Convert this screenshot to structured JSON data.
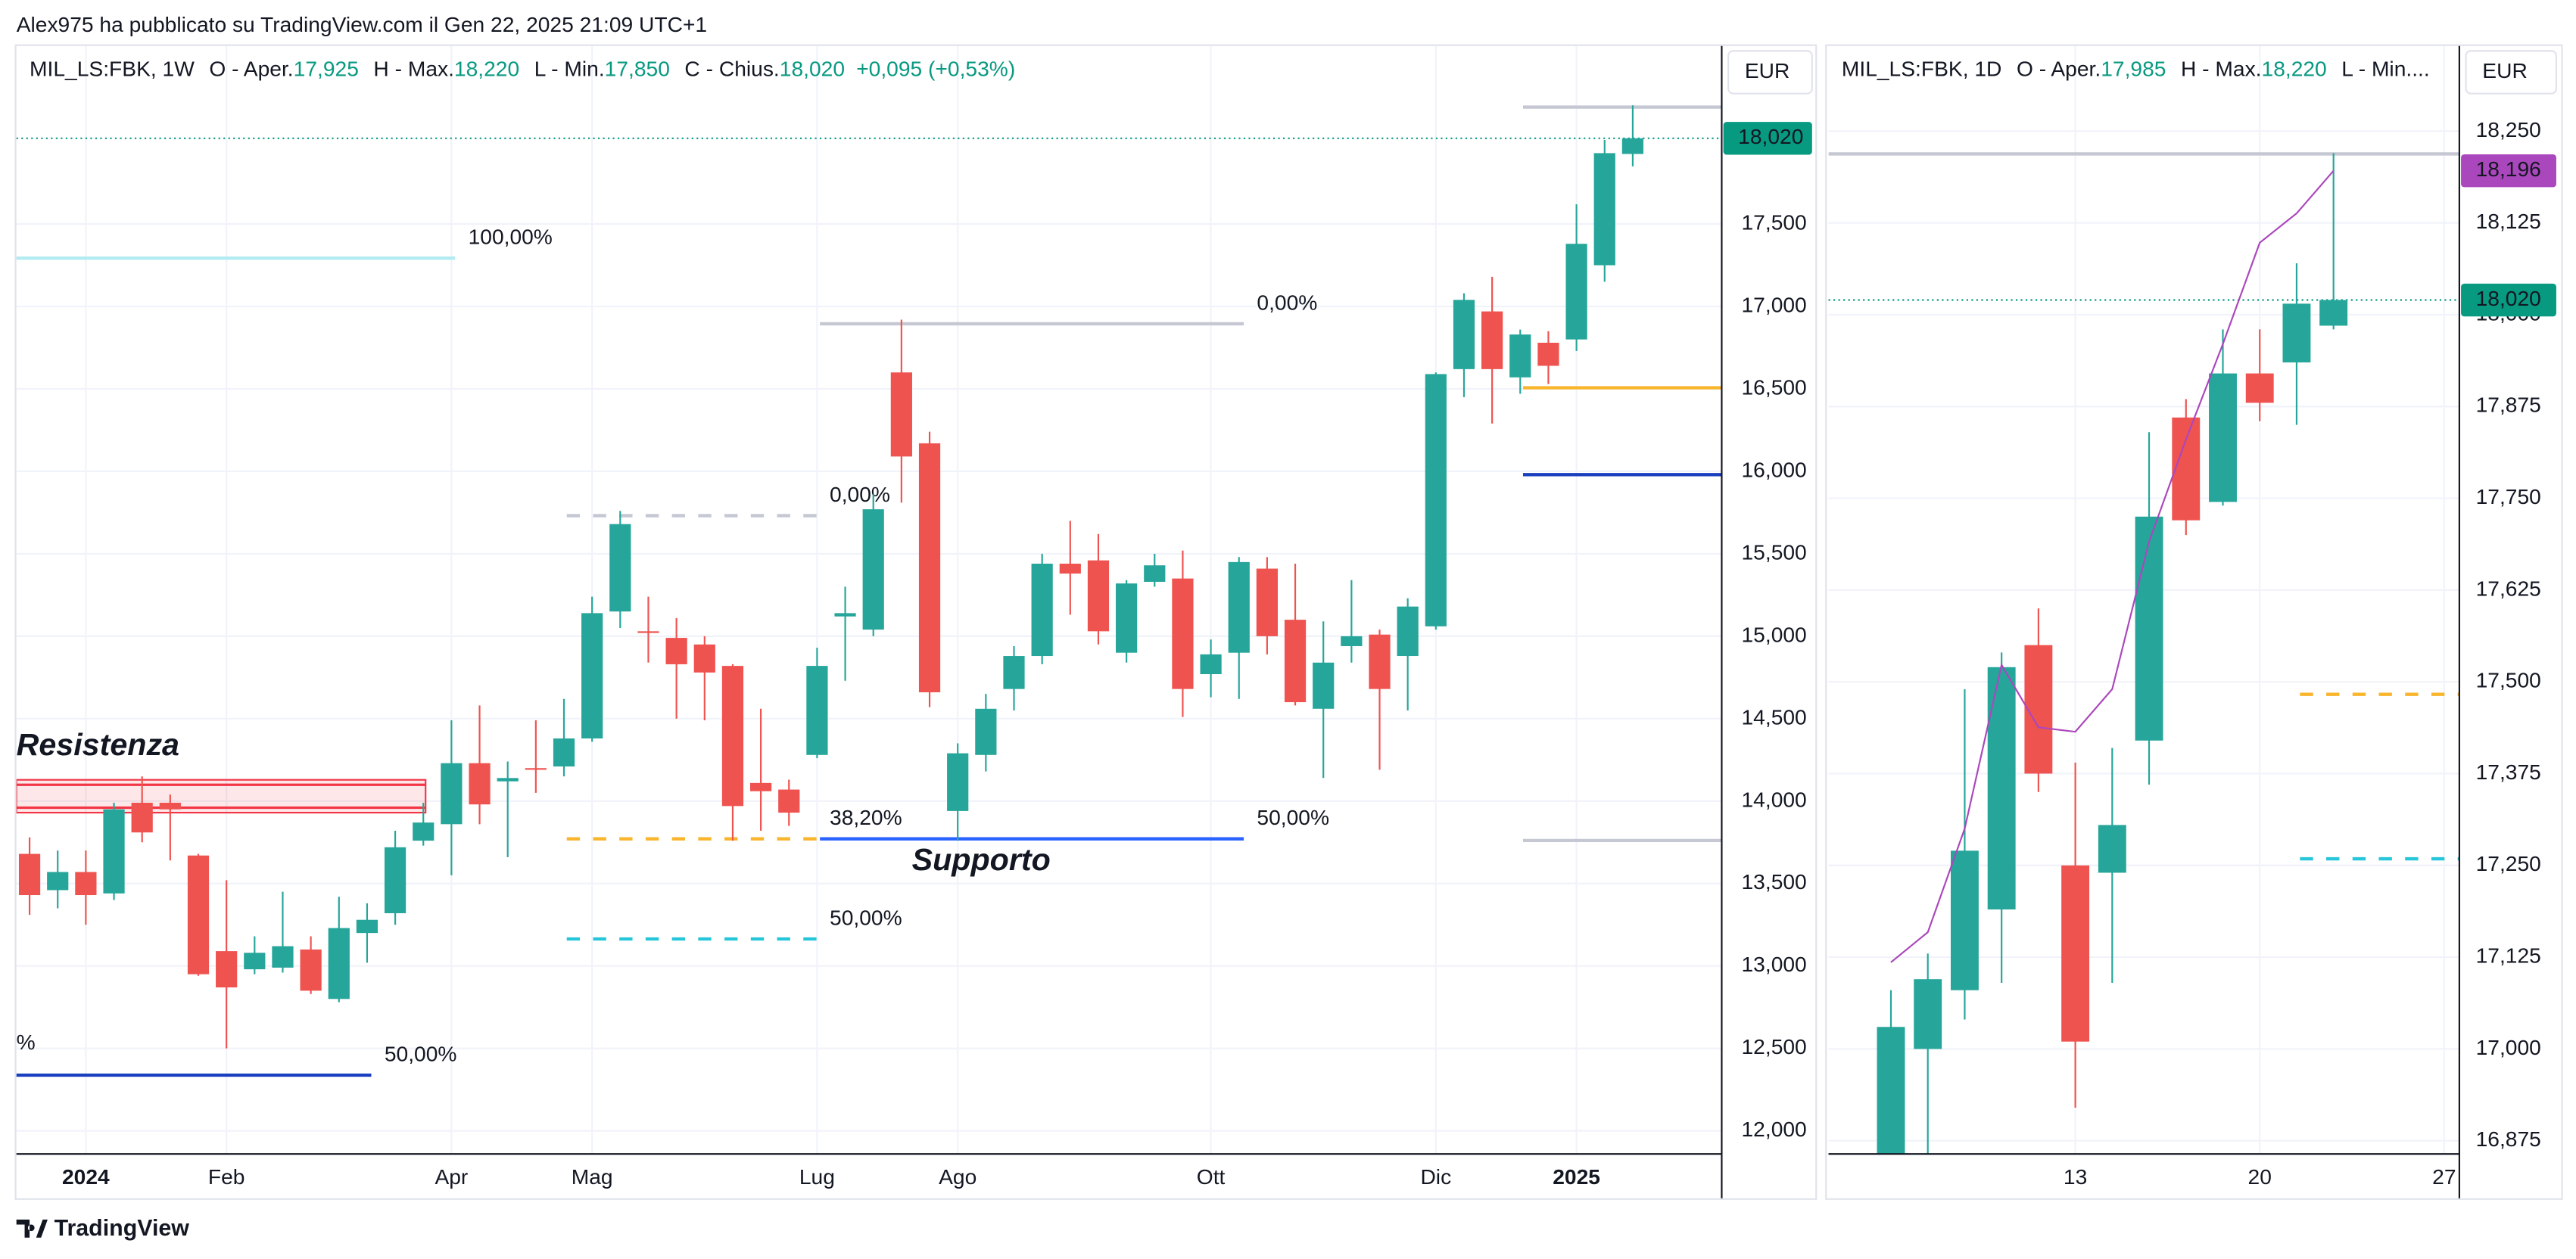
{
  "header": "Alex975 ha pubblicato su TradingView.com il Gen 22, 2025 21:09 UTC+1",
  "footer": "TradingView",
  "chart_data": [
    {
      "type": "candlestick",
      "currency": "EUR",
      "up_color": "#26a69a",
      "down_color": "#ef5350",
      "grid": true,
      "legend": {
        "symbol": "MIL_LS:FBK, 1W",
        "items": [
          {
            "label": "O - Aper.",
            "value": "17,925"
          },
          {
            "label": "H - Max.",
            "value": "18,220"
          },
          {
            "label": "L - Min.",
            "value": "17,850"
          },
          {
            "label": "C - Chius.",
            "value": "18,020"
          }
        ],
        "change": "+0,095 (+0,53%)"
      },
      "categories": [
        null,
        null,
        "2024",
        null,
        null,
        null,
        null,
        "Feb",
        null,
        null,
        null,
        null,
        null,
        null,
        null,
        "Apr",
        null,
        null,
        null,
        null,
        "Mag",
        null,
        null,
        null,
        null,
        null,
        null,
        null,
        "Lug",
        null,
        null,
        null,
        null,
        "Ago",
        null,
        null,
        null,
        null,
        null,
        null,
        null,
        null,
        "Ott",
        null,
        null,
        null,
        null,
        null,
        null,
        null,
        "Dic",
        null,
        null,
        null,
        null,
        "2025",
        null,
        null
      ],
      "open": [
        13680,
        13460,
        13570,
        13440,
        13990,
        13990,
        13670,
        13090,
        12980,
        12990,
        13100,
        12800,
        13200,
        13320,
        13760,
        13860,
        14230,
        14120,
        14200,
        14210,
        14380,
        15150,
        15030,
        14990,
        14950,
        14820,
        14110,
        14070,
        14280,
        15120,
        15040,
        16600,
        16170,
        13940,
        14280,
        14680,
        14880,
        15440,
        15460,
        14900,
        15330,
        15350,
        14770,
        14900,
        15410,
        15100,
        14560,
        14940,
        15010,
        14880,
        15060,
        16620,
        16970,
        16570,
        16780,
        16800,
        17250,
        17925
      ],
      "high": [
        13780,
        13700,
        13700,
        13990,
        14150,
        14040,
        13680,
        13520,
        13180,
        13450,
        13180,
        13420,
        13380,
        13820,
        13990,
        14490,
        14580,
        14240,
        14490,
        14620,
        15240,
        15760,
        15240,
        15110,
        15000,
        14830,
        14560,
        14130,
        14930,
        15300,
        15860,
        16920,
        16240,
        14350,
        14650,
        14940,
        15500,
        15700,
        15620,
        15340,
        15500,
        15520,
        14980,
        15480,
        15480,
        15440,
        15090,
        15340,
        15040,
        15230,
        16600,
        17080,
        17180,
        16860,
        16850,
        17620,
        18010,
        18220
      ],
      "low": [
        13310,
        13350,
        13250,
        13400,
        13750,
        13640,
        12940,
        12500,
        12950,
        12960,
        12830,
        12780,
        13020,
        13250,
        13730,
        13550,
        13860,
        13660,
        14050,
        14150,
        14360,
        15050,
        14840,
        14500,
        14490,
        13760,
        13820,
        13850,
        14260,
        14730,
        15000,
        15810,
        14570,
        13760,
        14180,
        14550,
        14830,
        15130,
        14950,
        14840,
        15300,
        14510,
        14630,
        14620,
        14890,
        14580,
        14140,
        14840,
        14190,
        14550,
        15040,
        16450,
        16290,
        16470,
        16530,
        16730,
        17150,
        17850
      ],
      "close": [
        13430,
        13570,
        13430,
        13950,
        13810,
        13950,
        12950,
        12870,
        13080,
        13120,
        12850,
        13230,
        13280,
        13720,
        13870,
        14230,
        13980,
        14140,
        14190,
        14380,
        15140,
        15680,
        15020,
        14830,
        14780,
        13970,
        14060,
        13930,
        14820,
        15140,
        15770,
        16090,
        14660,
        14290,
        14560,
        14880,
        15440,
        15380,
        15030,
        15320,
        15430,
        14680,
        14890,
        15450,
        15000,
        14600,
        14840,
        15000,
        14680,
        15180,
        16590,
        17040,
        16620,
        16830,
        16640,
        17380,
        17930,
        18020
      ],
      "ylim": [
        11860,
        18580
      ],
      "yticks": [
        {
          "value": 12000,
          "label": "12,000"
        },
        {
          "value": 12500,
          "label": "12,500"
        },
        {
          "value": 13000,
          "label": "13,000"
        },
        {
          "value": 13500,
          "label": "13,500"
        },
        {
          "value": 14000,
          "label": "14,000"
        },
        {
          "value": 14500,
          "label": "14,500"
        },
        {
          "value": 15000,
          "label": "15,000"
        },
        {
          "value": 15500,
          "label": "15,500"
        },
        {
          "value": 16000,
          "label": "16,000"
        },
        {
          "value": 16500,
          "label": "16,500"
        },
        {
          "value": 17000,
          "label": "17,000"
        },
        {
          "value": 17500,
          "label": "17,500"
        }
      ],
      "price_tags": [
        {
          "value": 18020,
          "label": "18,020",
          "color": "#089981"
        }
      ],
      "zones": [
        {
          "low": 13930,
          "high": 14129,
          "from": -0.47,
          "to": 14.08,
          "color": "#f23645"
        }
      ],
      "drawings": [
        {
          "price": 17293,
          "from": -0.47,
          "to": 15.13,
          "color": "#b2ebf2",
          "style": "solid",
          "label": "100,00%"
        },
        {
          "price": 16895,
          "from": 28.1,
          "to": 43.17,
          "color": "#c5c8d3",
          "style": "solid",
          "label": "0,00%"
        },
        {
          "price": 15731,
          "from": 19.1,
          "to": 27.98,
          "color": "#c5c8d3",
          "style": "dashed",
          "label": "0,00%"
        },
        {
          "price": 13771,
          "from": 19.1,
          "to": 27.98,
          "color": "#f9b52c",
          "style": "dashed",
          "label": "38,20%"
        },
        {
          "price": 13771,
          "from": 28.1,
          "to": 43.17,
          "color": "#2962ff",
          "style": "solid",
          "label": "50,00%"
        },
        {
          "price": 13164,
          "from": 19.1,
          "to": 27.98,
          "color": "#26c6da",
          "style": "dashed",
          "label": "50,00%"
        },
        {
          "price": 12338,
          "from": -0.47,
          "to": 12.15,
          "color": "#1a3fbf",
          "style": "solid",
          "label": "50,00%"
        },
        {
          "price": 18209,
          "from": 53.1,
          "to": 60.16,
          "color": "#c5c8d3",
          "style": "solid"
        },
        {
          "price": 16507,
          "from": 53.1,
          "to": 60.16,
          "color": "#f9b52c",
          "style": "solid"
        },
        {
          "price": 15980,
          "from": 53.1,
          "to": 60.16,
          "color": "#1a3fbf",
          "style": "solid"
        },
        {
          "price": 13761,
          "from": 53.1,
          "to": 60.16,
          "color": "#c5c8d3",
          "style": "solid"
        }
      ],
      "texts": [
        {
          "text": "Resistenza",
          "price": 14328,
          "at": -0.47,
          "color": "#b2182b",
          "big": true
        },
        {
          "text": "Supporto",
          "price": 13632,
          "at": 31.37,
          "color": "#1a3fbf",
          "big": true
        },
        {
          "text": "%",
          "price": 12527,
          "at": -0.47,
          "color": "#ab47bc",
          "big": false
        }
      ]
    },
    {
      "type": "candlestick",
      "currency": "EUR",
      "up_color": "#26a69a",
      "down_color": "#ef5350",
      "grid": true,
      "legend": {
        "symbol": "MIL_LS:FBK, 1D",
        "items": [
          {
            "label": "O - Aper.",
            "value": "17,985"
          },
          {
            "label": "H - Max.",
            "value": "18,220"
          },
          {
            "label": "L - Min...."
          }
        ]
      },
      "categories": [
        null,
        null,
        null,
        null,
        null,
        "13",
        null,
        null,
        null,
        null,
        "20",
        null,
        null,
        null,
        null,
        "27"
      ],
      "open": [
        16830,
        17000,
        17080,
        17190,
        17550,
        17250,
        17240,
        17420,
        17860,
        17745,
        17920,
        17935,
        17985,
        null,
        null,
        null
      ],
      "high": [
        17080,
        17130,
        17490,
        17540,
        17600,
        17390,
        17410,
        17840,
        17885,
        17980,
        17980,
        18070,
        18220,
        null,
        null,
        null
      ],
      "low": [
        16800,
        16830,
        17040,
        17090,
        17350,
        16920,
        17090,
        17360,
        17700,
        17740,
        17855,
        17850,
        17980,
        null,
        null,
        null
      ],
      "close": [
        17030,
        17095,
        17270,
        17520,
        17375,
        17010,
        17305,
        17725,
        17720,
        17920,
        17880,
        18015,
        18020,
        null,
        null,
        null
      ],
      "ma": {
        "color": "#ab47bc",
        "values": [
          17118,
          17159,
          17300,
          17523,
          17438,
          17432,
          17490,
          17691,
          17830,
          17960,
          18098,
          18138,
          18196,
          null,
          null,
          null
        ]
      },
      "ylim": [
        16857,
        18366
      ],
      "yticks": [
        {
          "value": 16875,
          "label": "16,875"
        },
        {
          "value": 17000,
          "label": "17,000"
        },
        {
          "value": 17125,
          "label": "17,125"
        },
        {
          "value": 17250,
          "label": "17,250"
        },
        {
          "value": 17375,
          "label": "17,375"
        },
        {
          "value": 17500,
          "label": "17,500"
        },
        {
          "value": 17625,
          "label": "17,625"
        },
        {
          "value": 17750,
          "label": "17,750"
        },
        {
          "value": 17875,
          "label": "17,875"
        },
        {
          "value": 18000,
          "label": "18,000"
        },
        {
          "value": 18125,
          "label": "18,125"
        },
        {
          "value": 18250,
          "label": "18,250"
        }
      ],
      "price_tags": [
        {
          "value": 18196,
          "label": "18,196",
          "color": "#ab47bc"
        },
        {
          "value": 18020,
          "label": "18,020",
          "color": "#089981"
        }
      ],
      "zones": [],
      "drawings": [
        {
          "price": 18219,
          "from": -1.69,
          "to": 15.41,
          "color": "#c5c8d3",
          "style": "solid"
        },
        {
          "price": 17483,
          "from": 11.09,
          "to": 15.41,
          "color": "#f9b52c",
          "style": "dashed"
        },
        {
          "price": 17259,
          "from": 11.09,
          "to": 15.41,
          "color": "#26c6da",
          "style": "dashed"
        }
      ],
      "texts": []
    }
  ]
}
